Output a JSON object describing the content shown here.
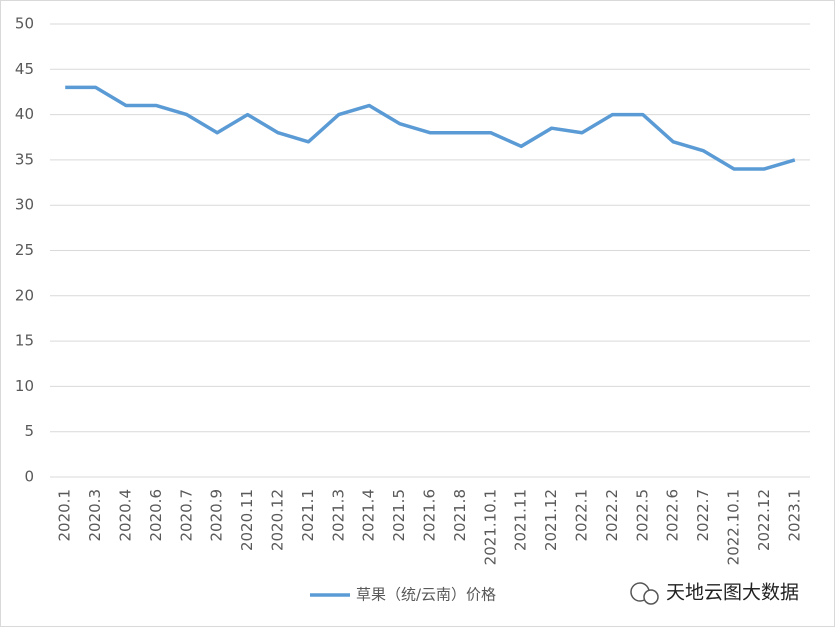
{
  "chart_data": {
    "type": "line",
    "categories": [
      "2020.1",
      "2020.3",
      "2020.4",
      "2020.6",
      "2020.7",
      "2020.9",
      "2020.11",
      "2020.12",
      "2021.1",
      "2021.3",
      "2021.4",
      "2021.5",
      "2021.6",
      "2021.8",
      "2021.10.1",
      "2021.11",
      "2021.12",
      "2022.1",
      "2022.2",
      "2022.5",
      "2022.6",
      "2022.7",
      "2022.10.1",
      "2022.12",
      "2023.1"
    ],
    "series": [
      {
        "name": "草果（统/云南）价格",
        "color": "#5b9bd5",
        "values": [
          43,
          43,
          41,
          41,
          40,
          38,
          40,
          38,
          37,
          40,
          41,
          39,
          38,
          38,
          38,
          36.5,
          38.5,
          38,
          40,
          40,
          37,
          36,
          34,
          34,
          35
        ]
      }
    ],
    "ylim": [
      0,
      50
    ],
    "yticks": [
      0,
      5,
      10,
      15,
      20,
      25,
      30,
      35,
      40,
      45,
      50
    ],
    "grid": true,
    "legend": "bottom",
    "watermark": "天地云图大数据"
  }
}
